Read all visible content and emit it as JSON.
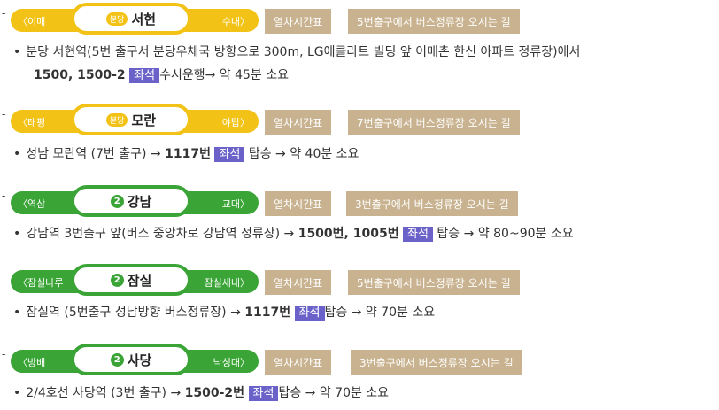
{
  "colors": {
    "yellow": "#f2c316",
    "green": "#3aa536",
    "button": "#c8b28f",
    "seat": "#6a62c8"
  },
  "timetable_label": "열차시간표",
  "seat_label": "좌석",
  "rows": [
    {
      "prev": "〈이매",
      "next": "수내〉",
      "line_badge": "분당",
      "station": "서현",
      "guide": "5번출구에서 버스정류장 오시는 길",
      "desc_a": "분당 서현역(5번 출구서 분당우체국 방향으로 300m, LG에클라트 빌딩 앞 이매촌 한신 아파트 정류장)에서",
      "bus": "1500, 1500-2",
      "desc_b": "수시운행→ 약 45분 소요"
    },
    {
      "prev": "〈태평",
      "next": "야탑〉",
      "line_badge": "분당",
      "station": "모란",
      "guide": "7번출구에서 버스정류장 오시는 길",
      "desc_a": "성남 모란역 (7번 출구) →",
      "bus": "1117번",
      "desc_b": "탑승 → 약 40분 소요"
    },
    {
      "prev": "〈역삼",
      "next": "교대〉",
      "line_no": "2",
      "station": "강남",
      "guide": "3번출구에서 버스정류장 오시는 길",
      "desc_a": "강남역 3번출구 앞(버스 중앙차로 강남역 정류장) →",
      "bus": "1500번, 1005번",
      "desc_b": "탑승 → 약 80~90분 소요"
    },
    {
      "prev": "〈잠실나루",
      "next": "잠실새내〉",
      "line_no": "2",
      "station": "잠실",
      "guide": "5번출구에서 버스정류장 오시는 길",
      "desc_a": "잠실역 (5번출구 성남방향 버스정류장) →",
      "bus": "1117번",
      "desc_b": "탑승 → 약 70분 소요"
    },
    {
      "prev": "〈방배",
      "next": "낙성대〉",
      "line_no": "2",
      "station": "사당",
      "guide": "3번출구에서 버스정류장 오시는 길",
      "desc_a": "2/4호선 사당역 (3번 출구) →",
      "bus": "1500-2번",
      "desc_b": "탑승 → 약 70분 소요"
    }
  ]
}
